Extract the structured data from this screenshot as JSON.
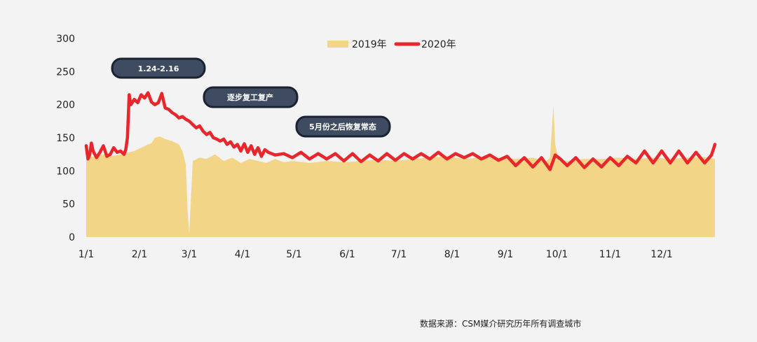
{
  "chart_data": {
    "type": "area",
    "x_axis": {
      "tick_labels": [
        "1/1",
        "2/1",
        "3/1",
        "4/1",
        "5/1",
        "6/1",
        "7/1",
        "8/1",
        "9/1",
        "10/1",
        "11/1",
        "12/1"
      ],
      "tick_days": [
        0,
        31,
        60,
        91,
        121,
        152,
        182,
        213,
        244,
        274,
        305,
        335
      ]
    },
    "y_axis": {
      "range": [
        0,
        300
      ],
      "ticks": [
        0,
        50,
        100,
        150,
        200,
        250,
        300
      ]
    },
    "legend": {
      "position": "top"
    },
    "series": [
      {
        "name": "2019年",
        "kind": "area",
        "color": "#f3d587",
        "points": [
          [
            0,
            120
          ],
          [
            5,
            122
          ],
          [
            10,
            125
          ],
          [
            15,
            122
          ],
          [
            20,
            125
          ],
          [
            25,
            128
          ],
          [
            28,
            130
          ],
          [
            32,
            135
          ],
          [
            36,
            140
          ],
          [
            38,
            142
          ],
          [
            40,
            150
          ],
          [
            43,
            152
          ],
          [
            46,
            148
          ],
          [
            50,
            145
          ],
          [
            54,
            140
          ],
          [
            56,
            130
          ],
          [
            58,
            110
          ],
          [
            59,
            40
          ],
          [
            60,
            5
          ],
          [
            61,
            60
          ],
          [
            62,
            115
          ],
          [
            66,
            120
          ],
          [
            70,
            118
          ],
          [
            75,
            125
          ],
          [
            80,
            115
          ],
          [
            85,
            120
          ],
          [
            90,
            112
          ],
          [
            95,
            118
          ],
          [
            100,
            115
          ],
          [
            105,
            112
          ],
          [
            110,
            118
          ],
          [
            115,
            113
          ],
          [
            120,
            115
          ],
          [
            130,
            112
          ],
          [
            140,
            115
          ],
          [
            150,
            113
          ],
          [
            160,
            115
          ],
          [
            170,
            117
          ],
          [
            180,
            115
          ],
          [
            190,
            118
          ],
          [
            200,
            120
          ],
          [
            210,
            122
          ],
          [
            220,
            118
          ],
          [
            230,
            120
          ],
          [
            240,
            120
          ],
          [
            250,
            118
          ],
          [
            260,
            120
          ],
          [
            268,
            115
          ],
          [
            270,
            120
          ],
          [
            272,
            200
          ],
          [
            273,
            140
          ],
          [
            275,
            115
          ],
          [
            280,
            115
          ],
          [
            290,
            118
          ],
          [
            300,
            118
          ],
          [
            310,
            120
          ],
          [
            320,
            118
          ],
          [
            330,
            120
          ],
          [
            340,
            118
          ],
          [
            350,
            120
          ],
          [
            360,
            121
          ],
          [
            366,
            118
          ]
        ]
      },
      {
        "name": "2020年",
        "kind": "line",
        "color": "#e8262b",
        "points": [
          [
            0,
            138
          ],
          [
            1,
            118
          ],
          [
            2,
            124
          ],
          [
            3,
            142
          ],
          [
            4,
            130
          ],
          [
            6,
            120
          ],
          [
            8,
            128
          ],
          [
            10,
            138
          ],
          [
            12,
            122
          ],
          [
            14,
            125
          ],
          [
            16,
            135
          ],
          [
            18,
            128
          ],
          [
            20,
            130
          ],
          [
            22,
            125
          ],
          [
            23,
            132
          ],
          [
            24,
            150
          ],
          [
            25,
            215
          ],
          [
            26,
            200
          ],
          [
            28,
            208
          ],
          [
            30,
            203
          ],
          [
            32,
            215
          ],
          [
            34,
            210
          ],
          [
            36,
            218
          ],
          [
            38,
            204
          ],
          [
            40,
            200
          ],
          [
            42,
            203
          ],
          [
            44,
            217
          ],
          [
            46,
            195
          ],
          [
            48,
            193
          ],
          [
            50,
            188
          ],
          [
            52,
            185
          ],
          [
            54,
            180
          ],
          [
            56,
            182
          ],
          [
            58,
            178
          ],
          [
            60,
            175
          ],
          [
            62,
            170
          ],
          [
            64,
            165
          ],
          [
            66,
            168
          ],
          [
            68,
            160
          ],
          [
            70,
            155
          ],
          [
            72,
            158
          ],
          [
            74,
            150
          ],
          [
            76,
            148
          ],
          [
            78,
            145
          ],
          [
            80,
            148
          ],
          [
            82,
            140
          ],
          [
            84,
            144
          ],
          [
            86,
            136
          ],
          [
            88,
            140
          ],
          [
            90,
            130
          ],
          [
            92,
            141
          ],
          [
            94,
            128
          ],
          [
            96,
            138
          ],
          [
            98,
            125
          ],
          [
            100,
            135
          ],
          [
            102,
            122
          ],
          [
            104,
            132
          ],
          [
            106,
            128
          ],
          [
            110,
            124
          ],
          [
            115,
            126
          ],
          [
            120,
            120
          ],
          [
            125,
            128
          ],
          [
            130,
            118
          ],
          [
            135,
            126
          ],
          [
            140,
            118
          ],
          [
            145,
            126
          ],
          [
            150,
            115
          ],
          [
            155,
            126
          ],
          [
            160,
            114
          ],
          [
            165,
            124
          ],
          [
            170,
            115
          ],
          [
            175,
            126
          ],
          [
            180,
            116
          ],
          [
            185,
            126
          ],
          [
            190,
            118
          ],
          [
            195,
            126
          ],
          [
            200,
            118
          ],
          [
            205,
            128
          ],
          [
            210,
            118
          ],
          [
            215,
            126
          ],
          [
            220,
            120
          ],
          [
            225,
            126
          ],
          [
            230,
            118
          ],
          [
            235,
            124
          ],
          [
            240,
            116
          ],
          [
            245,
            122
          ],
          [
            250,
            108
          ],
          [
            255,
            120
          ],
          [
            260,
            106
          ],
          [
            265,
            120
          ],
          [
            270,
            102
          ],
          [
            273,
            124
          ],
          [
            276,
            118
          ],
          [
            280,
            108
          ],
          [
            285,
            120
          ],
          [
            290,
            105
          ],
          [
            295,
            118
          ],
          [
            300,
            106
          ],
          [
            305,
            120
          ],
          [
            310,
            108
          ],
          [
            315,
            122
          ],
          [
            320,
            112
          ],
          [
            325,
            130
          ],
          [
            330,
            112
          ],
          [
            335,
            130
          ],
          [
            340,
            112
          ],
          [
            345,
            130
          ],
          [
            350,
            112
          ],
          [
            355,
            128
          ],
          [
            360,
            112
          ],
          [
            364,
            124
          ],
          [
            366,
            140
          ]
        ]
      }
    ],
    "annotations": [
      {
        "text": "1.24-2.16"
      },
      {
        "text": "逐步复工复产"
      },
      {
        "text": "5月份之后恢复常态"
      }
    ]
  },
  "source": "数据来源：CSM媒介研究历年所有调查城市"
}
